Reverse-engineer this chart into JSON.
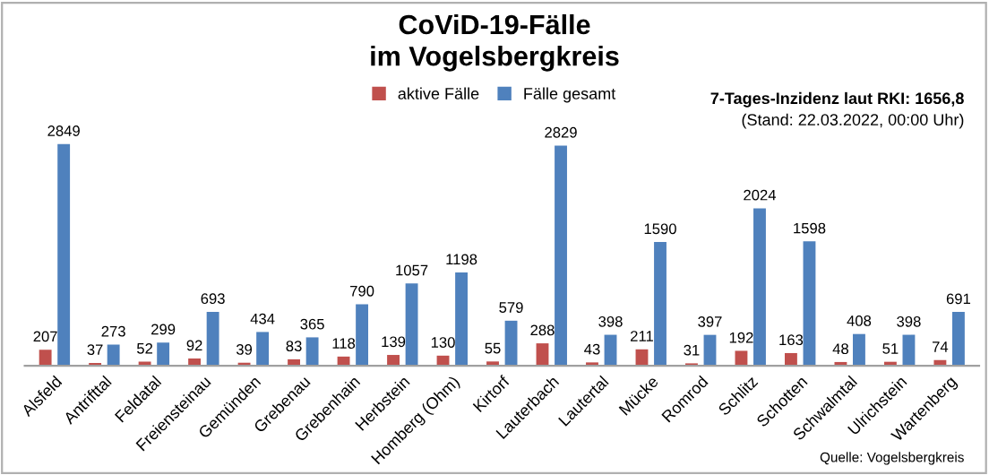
{
  "chart_data": {
    "type": "bar",
    "title": "CoViD-19-Fälle\nim Vogelsbergkreis",
    "categories": [
      "Alsfeld",
      "Antrifttal",
      "Feldatal",
      "Freiensteinau",
      "Gemünden",
      "Grebenau",
      "Grebenhain",
      "Herbstein",
      "Homberg (Ohm)",
      "Kirtorf",
      "Lauterbach",
      "Lautertal",
      "Mücke",
      "Romrod",
      "Schlitz",
      "Schotten",
      "Schwalmtal",
      "Ulrichstein",
      "Wartenberg"
    ],
    "series": [
      {
        "name": "aktive Fälle",
        "color": "#c0504d",
        "values": [
          207,
          37,
          52,
          92,
          39,
          83,
          118,
          139,
          130,
          55,
          288,
          43,
          211,
          31,
          192,
          163,
          48,
          51,
          74
        ]
      },
      {
        "name": "Fälle gesamt",
        "color": "#4f81bd",
        "values": [
          2849,
          273,
          299,
          693,
          434,
          365,
          790,
          1057,
          1198,
          579,
          2829,
          398,
          1590,
          397,
          2024,
          1598,
          408,
          398,
          691
        ]
      }
    ],
    "data_labels": true,
    "legend": "top",
    "grid": false,
    "tick_labels": "x",
    "annotations": [
      "7-Tages-Inzidenz laut RKI: 1656,8",
      "(Stand: 22.03.2022, 00:00 Uhr)",
      "Quelle: Vogelsbergkreis"
    ]
  }
}
